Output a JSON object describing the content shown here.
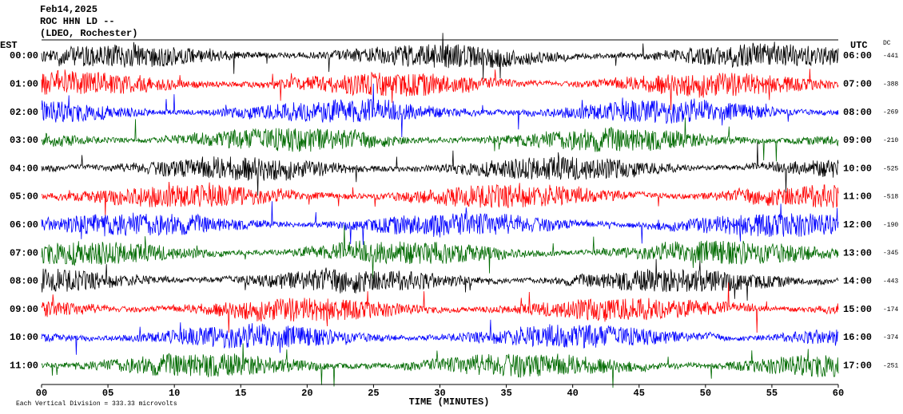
{
  "chart_data": {
    "type": "helicorder",
    "title": [
      "Feb14,2025",
      "ROC HHN LD --",
      "(LDEO, Rochester)"
    ],
    "left_axis_label": "EST",
    "right_axis_label": "UTC",
    "dc_label": "DC",
    "x_label": "TIME (MINUTES)",
    "footer": "Each Vertical Division =  333.33 microvolts",
    "xlim": [
      0,
      60
    ],
    "xticks": [
      {
        "value": 0,
        "label": "00"
      },
      {
        "value": 5,
        "label": "05"
      },
      10,
      15,
      20,
      25,
      30,
      35,
      40,
      45,
      50,
      55,
      60
    ],
    "rows": [
      {
        "est": "00:00",
        "utc": "06:00",
        "dc": -441,
        "color": "#000000"
      },
      {
        "est": "01:00",
        "utc": "07:00",
        "dc": -388,
        "color": "#ff0000"
      },
      {
        "est": "02:00",
        "utc": "08:00",
        "dc": -269,
        "color": "#0000ff"
      },
      {
        "est": "03:00",
        "utc": "09:00",
        "dc": -210,
        "color": "#006a00"
      },
      {
        "est": "04:00",
        "utc": "10:00",
        "dc": -525,
        "color": "#000000"
      },
      {
        "est": "05:00",
        "utc": "11:00",
        "dc": -518,
        "color": "#ff0000"
      },
      {
        "est": "06:00",
        "utc": "12:00",
        "dc": -190,
        "color": "#0000ff"
      },
      {
        "est": "07:00",
        "utc": "13:00",
        "dc": -345,
        "color": "#006a00"
      },
      {
        "est": "08:00",
        "utc": "14:00",
        "dc": -443,
        "color": "#000000"
      },
      {
        "est": "09:00",
        "utc": "15:00",
        "dc": -174,
        "color": "#ff0000"
      },
      {
        "est": "10:00",
        "utc": "16:00",
        "dc": -374,
        "color": "#0000ff"
      },
      {
        "est": "11:00",
        "utc": "17:00",
        "dc": -251,
        "color": "#006a00"
      }
    ]
  }
}
